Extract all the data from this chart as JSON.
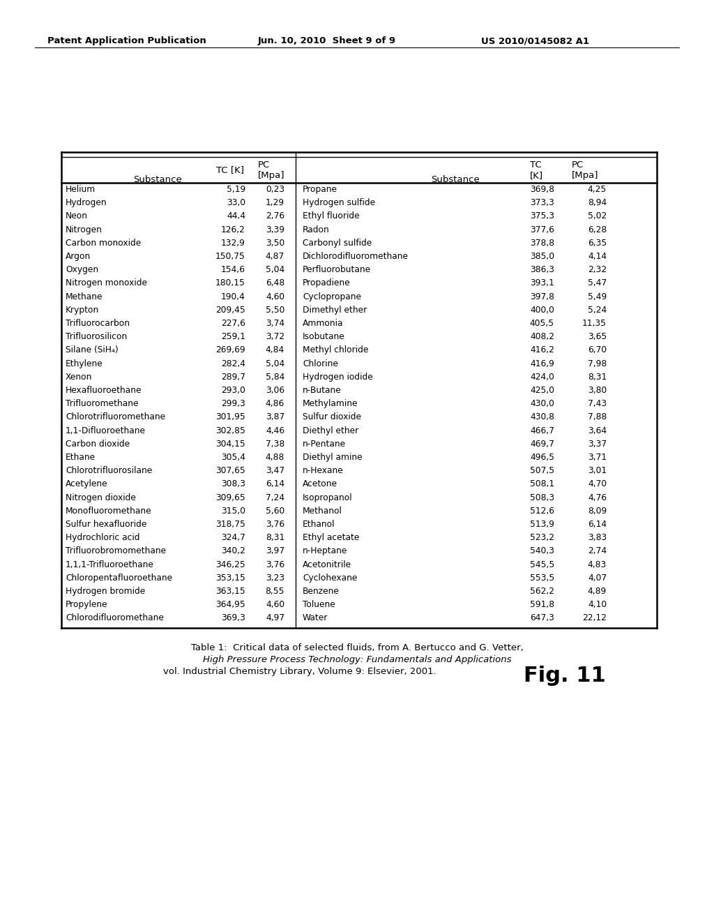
{
  "header_left": "Patent Application Publication",
  "header_mid": "Jun. 10, 2010  Sheet 9 of 9",
  "header_right": "US 2010/0145082 A1",
  "left_data": [
    [
      "Helium",
      "5,19",
      "0,23"
    ],
    [
      "Hydrogen",
      "33,0",
      "1,29"
    ],
    [
      "Neon",
      "44,4",
      "2,76"
    ],
    [
      "Nitrogen",
      "126,2",
      "3,39"
    ],
    [
      "Carbon monoxide",
      "132,9",
      "3,50"
    ],
    [
      "Argon",
      "150,75",
      "4,87"
    ],
    [
      "Oxygen",
      "154,6",
      "5,04"
    ],
    [
      "Nitrogen monoxide",
      "180,15",
      "6,48"
    ],
    [
      "Methane",
      "190,4",
      "4,60"
    ],
    [
      "Krypton",
      "209,45",
      "5,50"
    ],
    [
      "Trifluorocarbon",
      "227,6",
      "3,74"
    ],
    [
      "Trifluorosilicon",
      "259,1",
      "3,72"
    ],
    [
      "Silane (SiH₄)",
      "269,69",
      "4,84"
    ],
    [
      "Ethylene",
      "282,4",
      "5,04"
    ],
    [
      "Xenon",
      "289,7",
      "5,84"
    ],
    [
      "Hexafluoroethane",
      "293,0",
      "3,06"
    ],
    [
      "Trifluoromethane",
      "299,3",
      "4,86"
    ],
    [
      "Chlorotrifluoromethane",
      "301,95",
      "3,87"
    ],
    [
      "1,1-Difluoroethane",
      "302,85",
      "4,46"
    ],
    [
      "Carbon dioxide",
      "304,15",
      "7,38"
    ],
    [
      "Ethane",
      "305,4",
      "4,88"
    ],
    [
      "Chlorotrifluorosilane",
      "307,65",
      "3,47"
    ],
    [
      "Acetylene",
      "308,3",
      "6,14"
    ],
    [
      "Nitrogen dioxide",
      "309,65",
      "7,24"
    ],
    [
      "Monofluoromethane",
      "315,0",
      "5,60"
    ],
    [
      "Sulfur hexafluoride",
      "318,75",
      "3,76"
    ],
    [
      "Hydrochloric acid",
      "324,7",
      "8,31"
    ],
    [
      "Trifluorobromomethane",
      "340,2",
      "3,97"
    ],
    [
      "1,1,1-Trifluoroethane",
      "346,25",
      "3,76"
    ],
    [
      "Chloropentafluoroethane",
      "353,15",
      "3,23"
    ],
    [
      "Hydrogen bromide",
      "363,15",
      "8,55"
    ],
    [
      "Propylene",
      "364,95",
      "4,60"
    ],
    [
      "Chlorodifluoromethane",
      "369,3",
      "4,97"
    ]
  ],
  "right_data": [
    [
      "Propane",
      "369,8",
      "4,25"
    ],
    [
      "Hydrogen sulfide",
      "373,3",
      "8,94"
    ],
    [
      "Ethyl fluoride",
      "375,3",
      "5,02"
    ],
    [
      "Radon",
      "377,6",
      "6,28"
    ],
    [
      "Carbonyl sulfide",
      "378,8",
      "6,35"
    ],
    [
      "Dichlorodifluoromethane",
      "385,0",
      "4,14"
    ],
    [
      "Perfluorobutane",
      "386,3",
      "2,32"
    ],
    [
      "Propadiene",
      "393,1",
      "5,47"
    ],
    [
      "Cyclopropane",
      "397,8",
      "5,49"
    ],
    [
      "Dimethyl ether",
      "400,0",
      "5,24"
    ],
    [
      "Ammonia",
      "405,5",
      "11,35"
    ],
    [
      "Isobutane",
      "408,2",
      "3,65"
    ],
    [
      "Methyl chloride",
      "416,2",
      "6,70"
    ],
    [
      "Chlorine",
      "416,9",
      "7,98"
    ],
    [
      "Hydrogen iodide",
      "424,0",
      "8,31"
    ],
    [
      "n-Butane",
      "425,0",
      "3,80"
    ],
    [
      "Methylamine",
      "430,0",
      "7,43"
    ],
    [
      "Sulfur dioxide",
      "430,8",
      "7,88"
    ],
    [
      "Diethyl ether",
      "466,7",
      "3,64"
    ],
    [
      "n-Pentane",
      "469,7",
      "3,37"
    ],
    [
      "Diethyl amine",
      "496,5",
      "3,71"
    ],
    [
      "n-Hexane",
      "507,5",
      "3,01"
    ],
    [
      "Acetone",
      "508,1",
      "4,70"
    ],
    [
      "Isopropanol",
      "508,3",
      "4,76"
    ],
    [
      "Methanol",
      "512,6",
      "8,09"
    ],
    [
      "Ethanol",
      "513,9",
      "6,14"
    ],
    [
      "Ethyl acetate",
      "523,2",
      "3,83"
    ],
    [
      "n-Heptane",
      "540,3",
      "2,74"
    ],
    [
      "Acetonitrile",
      "545,5",
      "4,83"
    ],
    [
      "Cyclohexane",
      "553,5",
      "4,07"
    ],
    [
      "Benzene",
      "562,2",
      "4,89"
    ],
    [
      "Toluene",
      "591,8",
      "4,10"
    ],
    [
      "Water",
      "647,3",
      "22,12"
    ]
  ],
  "caption_line1": "Table 1:  Critical data of selected fluids, from A. Bertucco and G. Vetter,",
  "caption_line2": "High Pressure Process Technology: Fundamentals and Applications",
  "caption_line3": "vol. Industrial Chemistry Library, Volume 9: Elsevier, 2001.",
  "fig_label": "Fig. 11",
  "background_color": "#ffffff"
}
